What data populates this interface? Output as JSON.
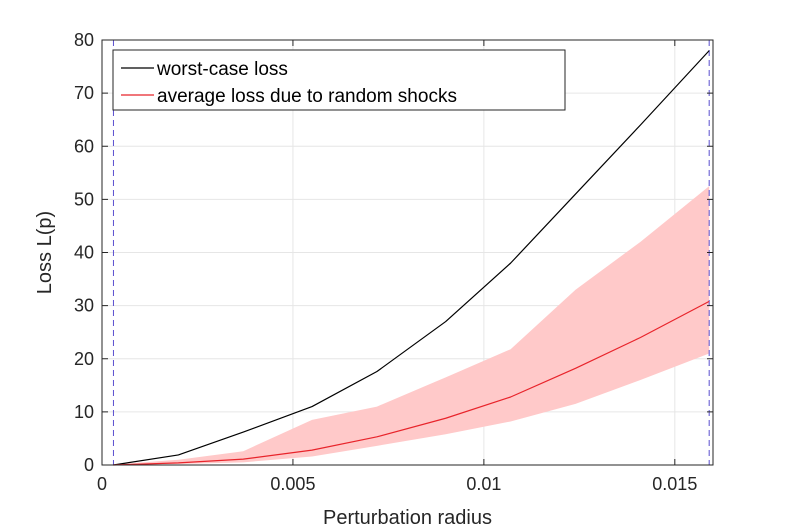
{
  "chart_data": {
    "type": "line",
    "xlabel": "Perturbation radius",
    "ylabel": "Loss L(p)",
    "xlim": [
      0,
      0.016
    ],
    "ylim": [
      0,
      80
    ],
    "xticks": [
      0,
      0.005,
      0.01,
      0.015
    ],
    "xtick_labels": [
      "0",
      "0.005",
      "0.01",
      "0.015"
    ],
    "yticks": [
      0,
      10,
      20,
      30,
      40,
      50,
      60,
      70,
      80
    ],
    "ytick_labels": [
      "0",
      "10",
      "20",
      "30",
      "40",
      "50",
      "60",
      "70",
      "80"
    ],
    "grid": true,
    "legend_position": "top-left",
    "vertical_lines": [
      0.0003,
      0.0159
    ],
    "vertical_line_color": "#5a4fcf",
    "series": [
      {
        "name": "worst-case loss",
        "color": "#000000",
        "x": [
          0.0003,
          0.002,
          0.0037,
          0.0055,
          0.0072,
          0.009,
          0.0107,
          0.0124,
          0.0141,
          0.0159
        ],
        "y": [
          0,
          1.9,
          6.2,
          11,
          17.6,
          27,
          38,
          51,
          64,
          78
        ]
      },
      {
        "name": "average loss due to random shocks",
        "color": "#e8242b",
        "x": [
          0.0003,
          0.002,
          0.0037,
          0.0055,
          0.0072,
          0.009,
          0.0107,
          0.0124,
          0.0141,
          0.0159
        ],
        "y": [
          0,
          0.4,
          1.1,
          2.8,
          5.3,
          8.8,
          12.8,
          18.2,
          24,
          30.8
        ]
      }
    ],
    "band": {
      "color": "#ffc9c9",
      "x": [
        0.0003,
        0.002,
        0.0037,
        0.0055,
        0.0072,
        0.009,
        0.0107,
        0.0124,
        0.0141,
        0.0159
      ],
      "upper": [
        0.1,
        1.0,
        2.6,
        8.5,
        11,
        16.5,
        21.8,
        33,
        42,
        52.5
      ],
      "lower": [
        0,
        0.2,
        0.5,
        1.6,
        3.6,
        5.8,
        8.2,
        11.5,
        16,
        21
      ]
    }
  }
}
